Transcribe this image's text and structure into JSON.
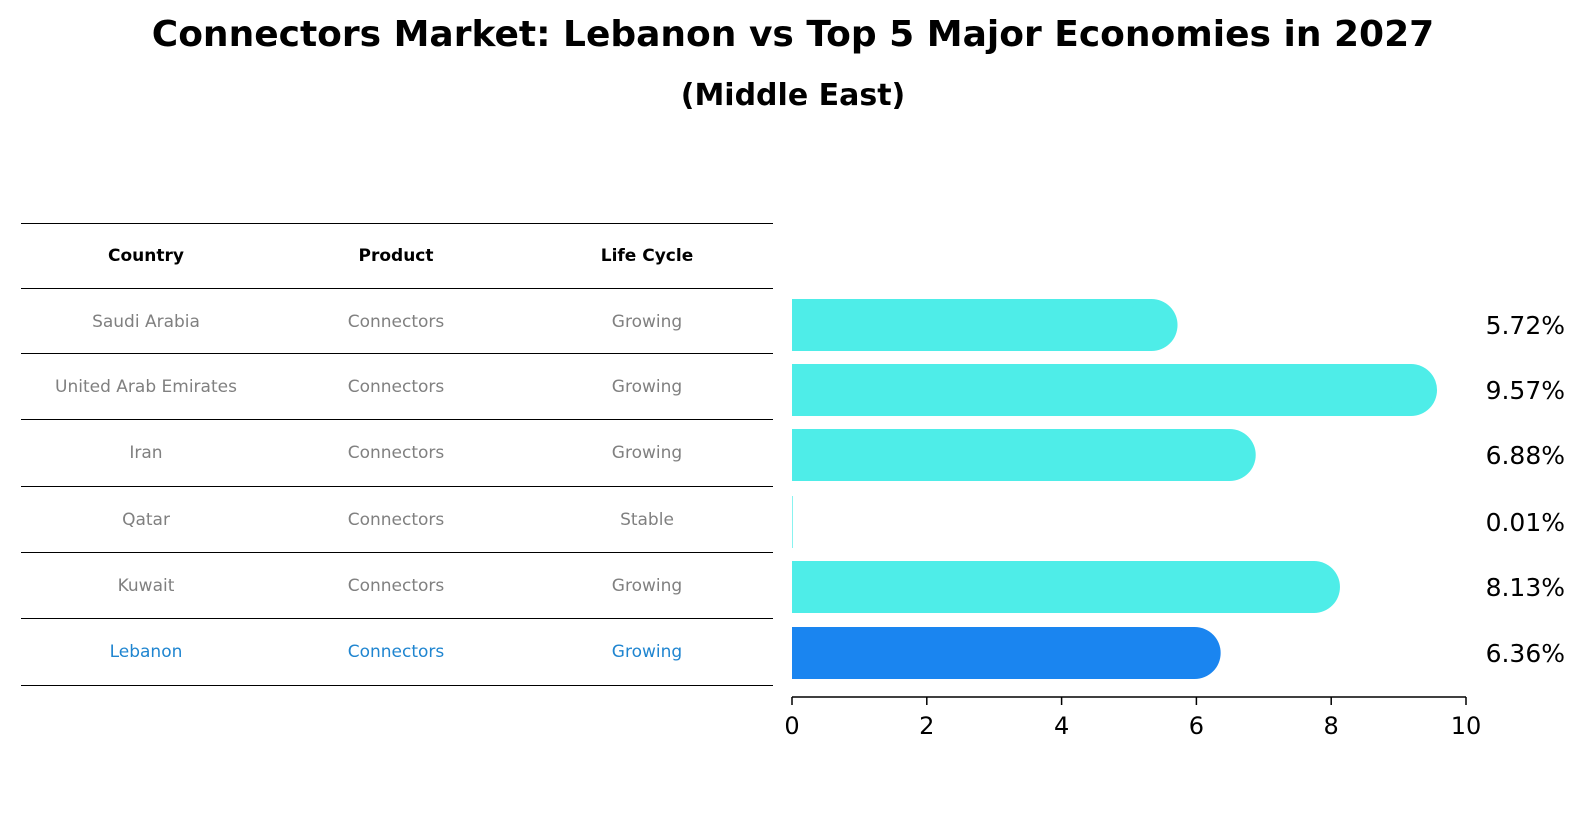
{
  "title": "Connectors Market: Lebanon vs Top 5 Major Economies in 2027",
  "subtitle": "(Middle East)",
  "table": {
    "headers": [
      "Country",
      "Product",
      "Life Cycle"
    ],
    "rows": [
      [
        "Saudi Arabia",
        "Connectors",
        "Growing"
      ],
      [
        "United Arab Emirates",
        "Connectors",
        "Growing"
      ],
      [
        "Iran",
        "Connectors",
        "Growing"
      ],
      [
        "Qatar",
        "Connectors",
        "Stable"
      ],
      [
        "Kuwait",
        "Connectors",
        "Growing"
      ],
      [
        "Lebanon",
        "Connectors",
        "Growing"
      ]
    ],
    "text_color": "#808080",
    "highlight_color": "#1f85d0"
  },
  "chart_data": {
    "type": "bar",
    "orientation": "horizontal",
    "categories": [
      "Saudi Arabia",
      "United Arab Emirates",
      "Iran",
      "Qatar",
      "Kuwait",
      "Lebanon"
    ],
    "values": [
      5.72,
      9.57,
      6.88,
      0.01,
      8.13,
      6.36
    ],
    "value_labels": [
      "5.72%",
      "9.57%",
      "6.88%",
      "0.01%",
      "8.13%",
      "6.36%"
    ],
    "xlim": [
      0,
      10
    ],
    "xticks": [
      0,
      2,
      4,
      6,
      8,
      10
    ],
    "grid": false,
    "bar_color": "#4eede8",
    "highlight_color": "#1a85f0",
    "highlight_index": 5
  }
}
